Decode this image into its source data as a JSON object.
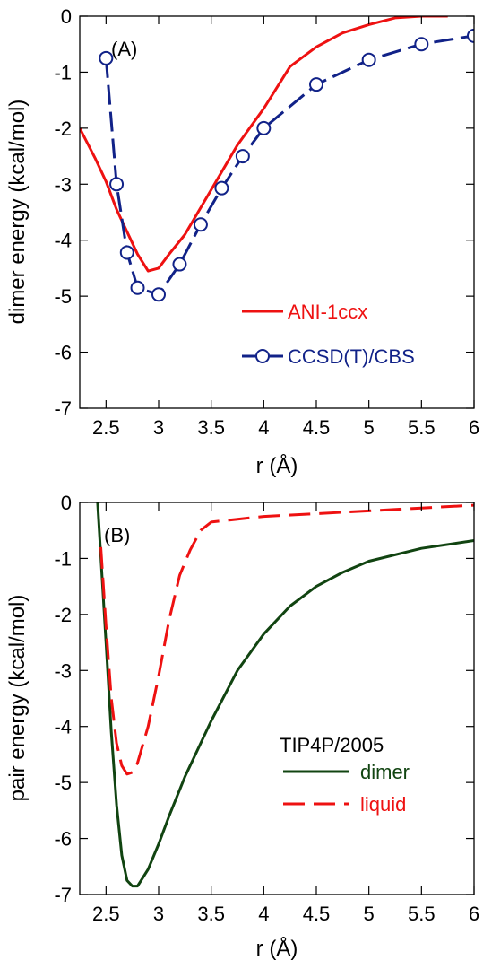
{
  "colors": {
    "ani": "#ee1111",
    "ccsd": "#112288",
    "dimer": "#114411",
    "liquid": "#ee1111",
    "axis": "#000000"
  },
  "chart_data": [
    {
      "type": "line",
      "panel_label": "(A)",
      "xlabel": "r (Å)",
      "ylabel": "dimer energy (kcal/mol)",
      "xlim": [
        2.25,
        6.0
      ],
      "ylim": [
        -7,
        0
      ],
      "xticks": [
        2.5,
        3,
        3.5,
        4,
        4.5,
        5,
        5.5,
        6
      ],
      "xtick_labels": [
        "2.5",
        "3",
        "3.5",
        "4",
        "4.5",
        "5",
        "5.5",
        "6"
      ],
      "yticks": [
        0,
        -1,
        -2,
        -3,
        -4,
        -5,
        -6,
        -7
      ],
      "ytick_labels": [
        "0",
        "-1",
        "-2",
        "-3",
        "-4",
        "-5",
        "-6",
        "-7"
      ],
      "grid": false,
      "legend_position": "bottom-right",
      "series": [
        {
          "name": "ANI-1ccx",
          "style": "solid",
          "marker": "none",
          "color_key": "ani",
          "x": [
            2.25,
            2.4,
            2.5,
            2.6,
            2.7,
            2.8,
            2.9,
            3.0,
            3.1,
            3.25,
            3.5,
            3.75,
            4.0,
            4.25,
            4.5,
            4.75,
            5.0,
            5.25,
            5.5,
            5.75
          ],
          "y": [
            -2.0,
            -2.55,
            -2.95,
            -3.45,
            -3.85,
            -4.25,
            -4.55,
            -4.5,
            -4.25,
            -3.9,
            -3.1,
            -2.3,
            -1.65,
            -0.9,
            -0.55,
            -0.3,
            -0.15,
            -0.03,
            0.0,
            0.0
          ]
        },
        {
          "name": "CCSD(T)/CBS",
          "style": "dashed",
          "marker": "open-circle",
          "color_key": "ccsd",
          "x": [
            2.5,
            2.6,
            2.7,
            2.8,
            3.0,
            3.2,
            3.4,
            3.6,
            3.8,
            4.0,
            4.5,
            5.0,
            5.5,
            6.0
          ],
          "y": [
            -0.75,
            -3.0,
            -4.22,
            -4.85,
            -4.97,
            -4.43,
            -3.72,
            -3.07,
            -2.5,
            -2.0,
            -1.22,
            -0.78,
            -0.5,
            -0.35
          ]
        }
      ]
    },
    {
      "type": "line",
      "panel_label": "(B)",
      "xlabel": "r (Å)",
      "ylabel": "pair energy (kcal/mol)",
      "xlim": [
        2.25,
        6.0
      ],
      "ylim": [
        -7,
        0
      ],
      "xticks": [
        2.5,
        3,
        3.5,
        4,
        4.5,
        5,
        5.5,
        6
      ],
      "xtick_labels": [
        "2.5",
        "3",
        "3.5",
        "4",
        "4.5",
        "5",
        "5.5",
        "6"
      ],
      "yticks": [
        0,
        -1,
        -2,
        -3,
        -4,
        -5,
        -6,
        -7
      ],
      "ytick_labels": [
        "0",
        "-1",
        "-2",
        "-3",
        "-4",
        "-5",
        "-6",
        "-7"
      ],
      "grid": false,
      "legend_title": "TIP4P/2005",
      "legend_position": "bottom-right",
      "series": [
        {
          "name": "dimer",
          "style": "solid",
          "marker": "none",
          "color_key": "dimer",
          "x": [
            2.42,
            2.5,
            2.55,
            2.6,
            2.65,
            2.7,
            2.75,
            2.8,
            2.85,
            2.9,
            3.0,
            3.1,
            3.25,
            3.5,
            3.75,
            4.0,
            4.25,
            4.5,
            4.75,
            5.0,
            5.5,
            6.0
          ],
          "y": [
            0.0,
            -2.5,
            -4.1,
            -5.4,
            -6.3,
            -6.75,
            -6.85,
            -6.85,
            -6.7,
            -6.55,
            -6.1,
            -5.6,
            -4.9,
            -3.9,
            -3.0,
            -2.35,
            -1.85,
            -1.5,
            -1.25,
            -1.05,
            -0.82,
            -0.68
          ]
        },
        {
          "name": "liquid",
          "style": "dashed",
          "marker": "none",
          "color_key": "liquid",
          "x": [
            2.45,
            2.5,
            2.55,
            2.6,
            2.65,
            2.7,
            2.75,
            2.8,
            2.9,
            3.0,
            3.1,
            3.2,
            3.3,
            3.4,
            3.5,
            3.75,
            4.0,
            4.5,
            5.0,
            5.5,
            6.0
          ],
          "y": [
            -0.8,
            -2.2,
            -3.5,
            -4.3,
            -4.7,
            -4.85,
            -4.82,
            -4.65,
            -4.0,
            -3.1,
            -2.1,
            -1.3,
            -0.85,
            -0.5,
            -0.35,
            -0.3,
            -0.25,
            -0.2,
            -0.15,
            -0.1,
            -0.05
          ]
        }
      ]
    }
  ]
}
